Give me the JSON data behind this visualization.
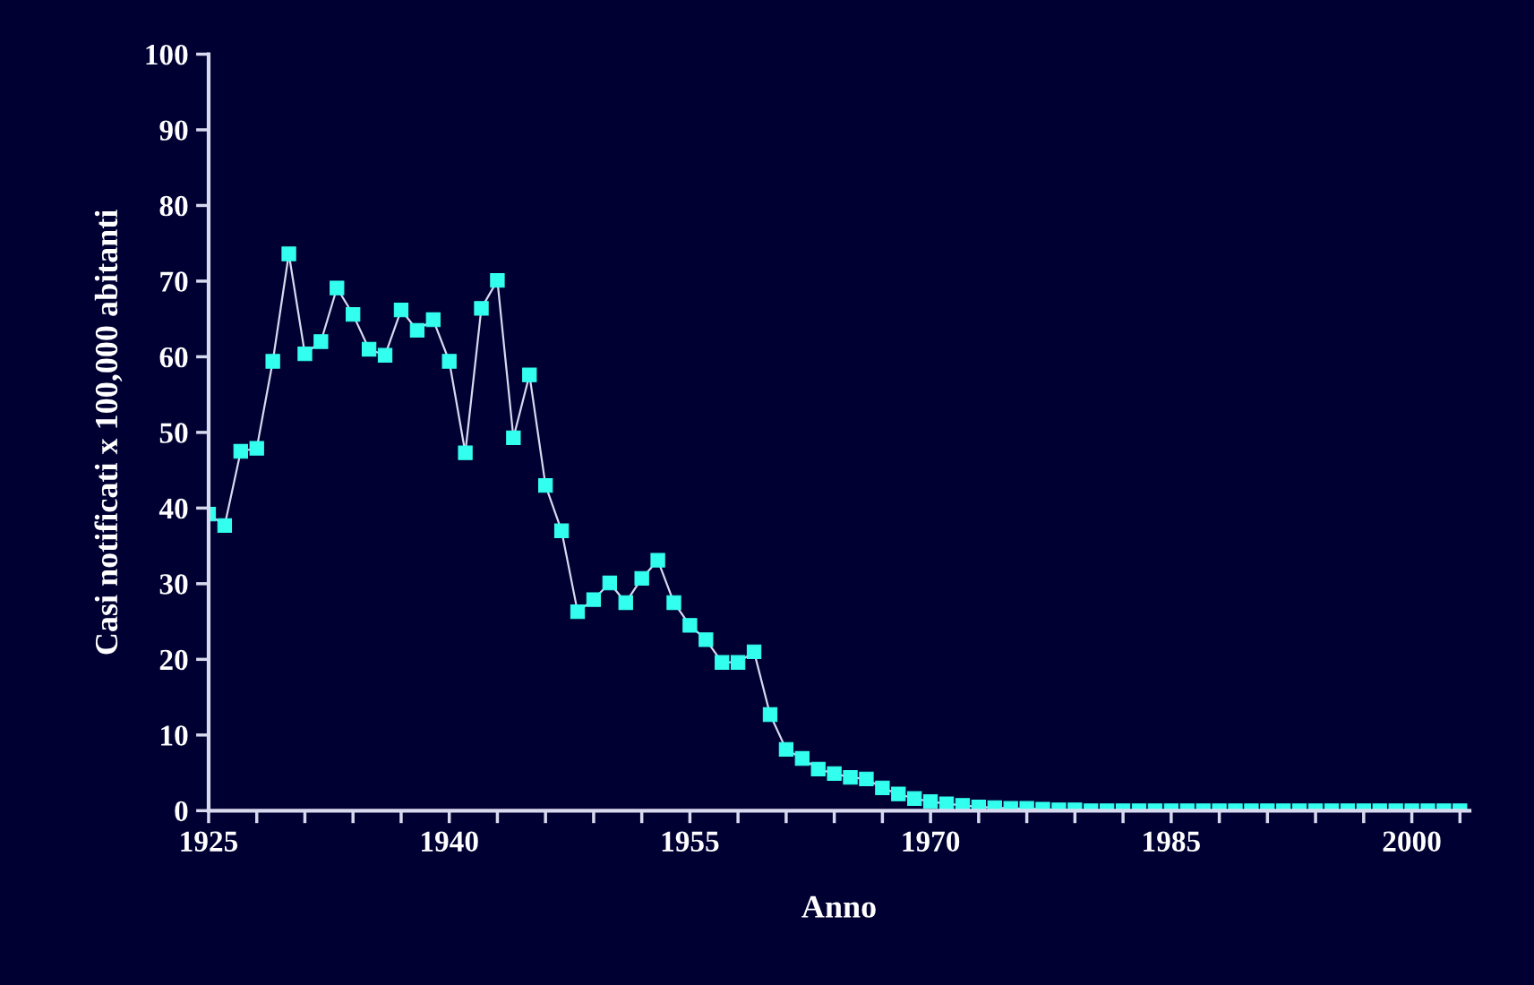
{
  "chart_data": {
    "type": "line",
    "xlabel": "Anno",
    "ylabel": "Casi notificati x 100,000 abitanti",
    "x": [
      1925,
      1926,
      1927,
      1928,
      1929,
      1930,
      1931,
      1932,
      1933,
      1934,
      1935,
      1936,
      1937,
      1938,
      1939,
      1940,
      1941,
      1942,
      1943,
      1944,
      1945,
      1946,
      1947,
      1948,
      1949,
      1950,
      1951,
      1952,
      1953,
      1954,
      1955,
      1956,
      1957,
      1958,
      1959,
      1960,
      1961,
      1962,
      1963,
      1964,
      1965,
      1966,
      1967,
      1968,
      1969,
      1970,
      1971,
      1972,
      1973,
      1974,
      1975,
      1976,
      1977,
      1978,
      1979,
      1980,
      1981,
      1982,
      1983,
      1984,
      1985,
      1986,
      1987,
      1988,
      1989,
      1990,
      1991,
      1992,
      1993,
      1994,
      1995,
      1996,
      1997,
      1998,
      1999,
      2000,
      2001,
      2002,
      2003
    ],
    "series": [
      {
        "color": "#33ffee",
        "values": [
          39.2,
          37.7,
          47.5,
          47.9,
          59.4,
          73.6,
          60.4,
          62.0,
          69.1,
          65.6,
          61.0,
          60.2,
          66.2,
          63.5,
          64.9,
          59.4,
          47.3,
          66.4,
          70.1,
          49.3,
          57.6,
          43.0,
          37.0,
          26.3,
          27.9,
          30.1,
          27.5,
          30.7,
          33.1,
          27.5,
          24.5,
          22.6,
          19.6,
          19.6,
          21.0,
          12.7,
          8.1,
          6.9,
          5.5,
          4.9,
          4.4,
          4.2,
          3.0,
          2.2,
          1.6,
          1.2,
          0.9,
          0.7,
          0.5,
          0.4,
          0.3,
          0.3,
          0.2,
          0.1,
          0.1,
          0,
          0,
          0,
          0,
          0,
          0,
          0,
          0,
          0,
          0,
          0,
          0,
          0,
          0,
          0,
          0,
          0,
          0,
          0,
          0,
          0,
          0,
          0,
          0
        ]
      }
    ],
    "xlim": [
      1925,
      2003.6
    ],
    "ylim": [
      0,
      100
    ],
    "xticks": [
      1925,
      {
        "value": 1928,
        "label": null
      },
      {
        "value": 1931,
        "label": null
      },
      {
        "value": 1934,
        "label": null
      },
      {
        "value": 1937,
        "label": null
      },
      1940,
      {
        "value": 1943,
        "label": null
      },
      {
        "value": 1946,
        "label": null
      },
      {
        "value": 1949,
        "label": null
      },
      {
        "value": 1952,
        "label": null
      },
      1955,
      {
        "value": 1958,
        "label": null
      },
      {
        "value": 1961,
        "label": null
      },
      {
        "value": 1964,
        "label": null
      },
      {
        "value": 1967,
        "label": null
      },
      1970,
      {
        "value": 1973,
        "label": null
      },
      {
        "value": 1976,
        "label": null
      },
      {
        "value": 1979,
        "label": null
      },
      {
        "value": 1982,
        "label": null
      },
      1985,
      {
        "value": 1988,
        "label": null
      },
      {
        "value": 1991,
        "label": null
      },
      {
        "value": 1994,
        "label": null
      },
      {
        "value": 1997,
        "label": null
      },
      2000,
      {
        "value": 2003,
        "label": null
      }
    ],
    "yticks": [
      0,
      10,
      20,
      30,
      40,
      50,
      60,
      70,
      80,
      90,
      100
    ],
    "marker": "square",
    "line_style": "solid",
    "grid": false
  }
}
